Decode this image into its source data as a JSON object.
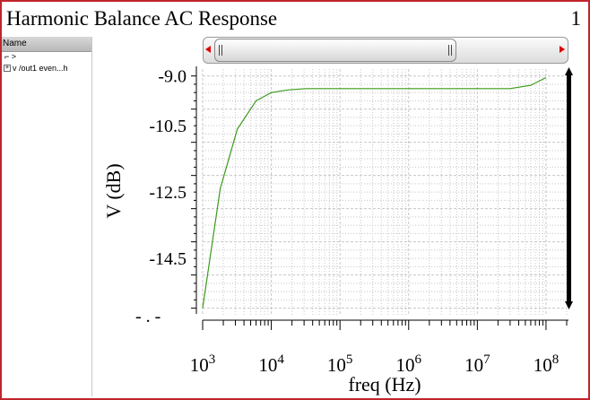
{
  "window": {
    "title": "Harmonic Balance AC Response",
    "page_number": "1"
  },
  "panel": {
    "header": "Name",
    "root_symbol": "⌐ ˃",
    "items": [
      {
        "expander": "+",
        "label": "v /out1 even...h"
      }
    ]
  },
  "colors": {
    "frame": "#c0252b",
    "trace": "#3a9a1a",
    "grid": "#c8c8c8",
    "marker": "#000000"
  },
  "chart_data": {
    "type": "line",
    "title": "Harmonic Balance AC Response",
    "xlabel": "freq (Hz)",
    "ylabel": "V (dB)",
    "x_scale": "log",
    "xlim": [
      1000,
      200000000
    ],
    "ylim": [
      -16.2,
      -8.9
    ],
    "grid": true,
    "x_ticks": [
      {
        "value": 1000,
        "base": "10",
        "exp": "3"
      },
      {
        "value": 10000,
        "base": "10",
        "exp": "4"
      },
      {
        "value": 100000,
        "base": "10",
        "exp": "5"
      },
      {
        "value": 1000000,
        "base": "10",
        "exp": "6"
      },
      {
        "value": 10000000,
        "base": "10",
        "exp": "7"
      },
      {
        "value": 100000000,
        "base": "10",
        "exp": "8"
      }
    ],
    "y_ticks": [
      {
        "value": -9.0,
        "label": "-9.0"
      },
      {
        "value": -10.5,
        "label": "-10.5"
      },
      {
        "value": -12.5,
        "label": "-12.5"
      },
      {
        "value": -14.5,
        "label": "-14.5"
      }
    ],
    "series": [
      {
        "name": "v /out1 even...h",
        "x": [
          1000,
          1800,
          3200,
          6000,
          10000,
          18000,
          32000,
          100000,
          1000000,
          10000000,
          30000000,
          60000000,
          100000000
        ],
        "y": [
          -16.0,
          -12.4,
          -10.6,
          -9.75,
          -9.5,
          -9.42,
          -9.38,
          -9.38,
          -9.38,
          -9.38,
          -9.38,
          -9.28,
          -9.05
        ]
      }
    ]
  }
}
